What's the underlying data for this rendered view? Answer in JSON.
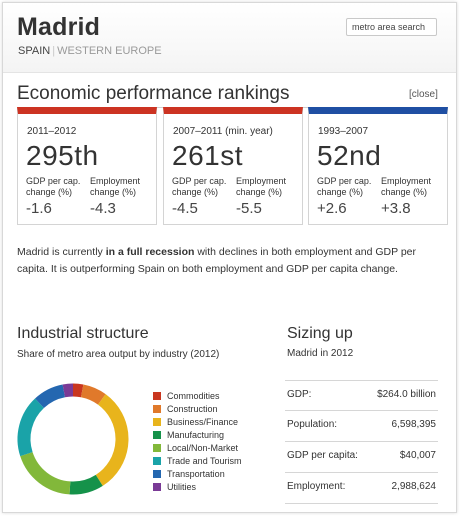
{
  "header": {
    "city": "Madrid",
    "country": "SPAIN",
    "continent": "WESTERN EUROPE",
    "search_value": "metro area search"
  },
  "rankings": {
    "title": "Economic performance rankings",
    "close_label": "[close]",
    "cards": [
      {
        "period": "2011–2012",
        "rank": "295th",
        "gdp_label": "GDP per cap. change (%)",
        "emp_label": "Employment change (%)",
        "gdp_value": "-1.6",
        "emp_value": "-4.3",
        "accent": "#cc3322"
      },
      {
        "period": "2007–2011 (min. year)",
        "rank": "261st",
        "gdp_label": "GDP per cap. change (%)",
        "emp_label": "Employment change (%)",
        "gdp_value": "-4.5",
        "emp_value": "-5.5",
        "accent": "#cc3322"
      },
      {
        "period": "1993–2007",
        "rank": "52nd",
        "gdp_label": "GDP per cap. change (%)",
        "emp_label": "Employment change (%)",
        "gdp_value": "+2.6",
        "emp_value": "+3.8",
        "accent": "#1f4fa3"
      }
    ]
  },
  "summary": {
    "pre": "Madrid is currently ",
    "bold": "in a full recession",
    "post": " with declines in both employment and GDP per capita. It is outperforming Spain on both employment and GDP per capita change."
  },
  "industrial": {
    "title": "Industrial structure",
    "subtitle": "Share of metro area output by industry (2012)",
    "legend": [
      {
        "label": "Commodities",
        "color": "#c9361f"
      },
      {
        "label": "Construction",
        "color": "#e0792b"
      },
      {
        "label": "Business/Finance",
        "color": "#e8b41c"
      },
      {
        "label": "Manufacturing",
        "color": "#15924a"
      },
      {
        "label": "Local/Non-Market",
        "color": "#82b83a"
      },
      {
        "label": "Trade and Tourism",
        "color": "#1aa3a8"
      },
      {
        "label": "Transportation",
        "color": "#2467b0"
      },
      {
        "label": "Utilities",
        "color": "#7a3a96"
      }
    ]
  },
  "chart_data": {
    "type": "pie",
    "categories": [
      "Commodities",
      "Construction",
      "Business/Finance",
      "Manufacturing",
      "Local/Non-Market",
      "Trade and Tourism",
      "Transportation",
      "Utilities"
    ],
    "values": [
      3,
      7,
      31,
      10,
      19,
      18,
      9,
      3
    ],
    "legend": "right",
    "title": ""
  },
  "sizing": {
    "title": "Sizing up",
    "subtitle": "Madrid in 2012",
    "rows": [
      {
        "label": "GDP:",
        "value": "$264.0 billion"
      },
      {
        "label": "Population:",
        "value": "6,598,395"
      },
      {
        "label": "GDP per capita:",
        "value": "$40,007"
      },
      {
        "label": "Employment:",
        "value": "2,988,624"
      }
    ]
  }
}
